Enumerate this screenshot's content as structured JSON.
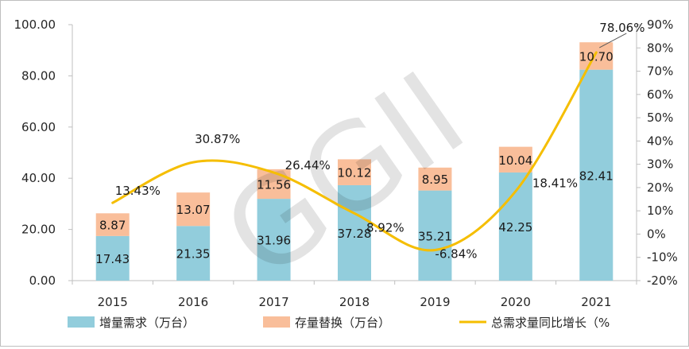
{
  "chart_data": {
    "type": "bar",
    "stacked": true,
    "categories": [
      "2015",
      "2016",
      "2017",
      "2018",
      "2019",
      "2020",
      "2021"
    ],
    "series": [
      {
        "name": "增量需求（万台）",
        "type": "bar",
        "axis": "left",
        "color": "#92cddc",
        "values": [
          17.43,
          21.35,
          31.96,
          37.28,
          35.21,
          42.25,
          82.41
        ],
        "labels": [
          "17.43",
          "21.35",
          "31.96",
          "37.28",
          "35.21",
          "42.25",
          "82.41"
        ]
      },
      {
        "name": "存量替换（万台）",
        "type": "bar",
        "axis": "left",
        "color": "#f9be9a",
        "values": [
          8.87,
          13.07,
          11.56,
          10.12,
          8.95,
          10.04,
          10.7
        ],
        "labels": [
          "8.87",
          "13.07",
          "11.56",
          "10.12",
          "8.95",
          "10.04",
          "10.70"
        ]
      },
      {
        "name": "总需求量同比增长（%",
        "type": "line",
        "axis": "right",
        "color": "#f5be00",
        "values": [
          13.43,
          30.87,
          26.44,
          8.92,
          -6.84,
          18.41,
          78.06
        ],
        "labels": [
          "13.43%",
          "30.87%",
          "26.44%",
          "8.92%",
          "-6.84%",
          "18.41%",
          "78.06%"
        ]
      }
    ],
    "y_left": {
      "min": 0,
      "max": 100,
      "ticks": [
        "0.00",
        "20.00",
        "40.00",
        "60.00",
        "80.00",
        "100.00"
      ]
    },
    "y_right": {
      "min": -20,
      "max": 90,
      "ticks": [
        "-20%",
        "-10%",
        "0%",
        "10%",
        "20%",
        "30%",
        "40%",
        "50%",
        "60%",
        "70%",
        "80%",
        "90%"
      ]
    },
    "title": "",
    "xlabel": "",
    "ylabel": "",
    "grid": false,
    "legend_position": "bottom",
    "watermark": "GGII"
  }
}
